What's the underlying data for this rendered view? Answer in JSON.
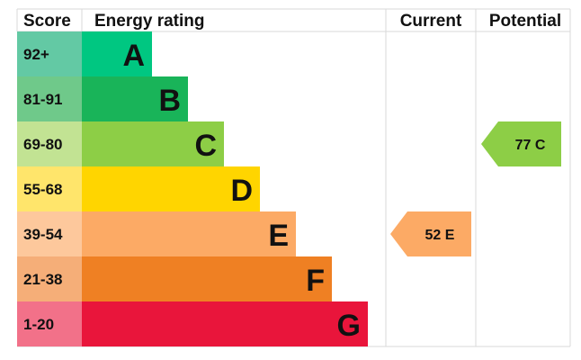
{
  "headers": {
    "score": "Score",
    "rating": "Energy rating",
    "current": "Current",
    "potential": "Potential"
  },
  "chart_data": {
    "type": "bar",
    "categories": [
      "A",
      "B",
      "C",
      "D",
      "E",
      "F",
      "G"
    ],
    "score_ranges": [
      "92+",
      "81-91",
      "69-80",
      "55-68",
      "39-54",
      "21-38",
      "1-20"
    ],
    "band_colors": [
      "#00c781",
      "#19b459",
      "#8dce46",
      "#ffd500",
      "#fcaa65",
      "#ef8023",
      "#e9153b"
    ],
    "score_colors": [
      "#63c9a4",
      "#6fc98a",
      "#c2e393",
      "#ffe56b",
      "#fdc89c",
      "#f5ae78",
      "#f27189"
    ],
    "current": {
      "value": 52,
      "band": "E",
      "label": "52 E",
      "color": "#fcaa65"
    },
    "potential": {
      "value": 77,
      "band": "C",
      "label": "77 C",
      "color": "#8dce46"
    }
  }
}
